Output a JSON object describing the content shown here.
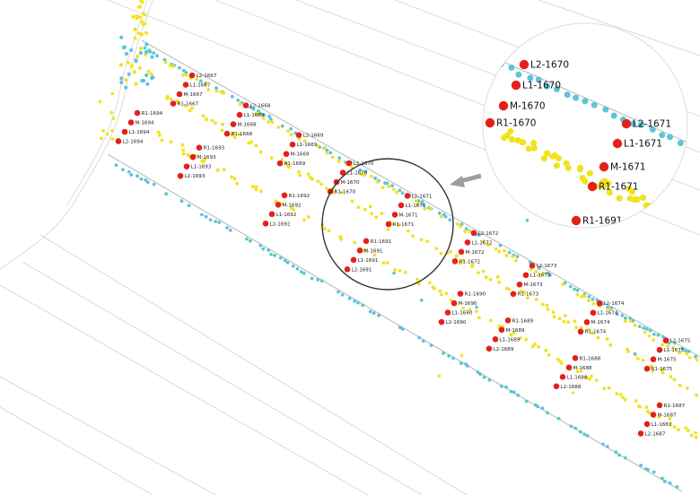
{
  "map": {
    "colors": {
      "background": "#ffffff",
      "boundary_line": "#bdbdbd",
      "road_line": "#d2d2d2",
      "point_yellow": "#f2e21c",
      "point_blue": "#5ec4d8",
      "tree_red": "#e3211c",
      "circle": "#333333",
      "arrow": "#9e9e9e",
      "zoom_bg": "#ffffff"
    },
    "tree_labels": [
      "L2-1667",
      "L1-1667",
      "M-1667",
      "R1-1667",
      "L2-1668",
      "L1-1668",
      "M-1668",
      "R1-1668",
      "L2-1669",
      "L1-1669",
      "M-1669",
      "R1-1669",
      "L2-1670",
      "L1-1670",
      "M-1670",
      "R1-1670",
      "L2-1671",
      "L1-1671",
      "M-1671",
      "R1-1671",
      "L2-1672",
      "L1-1672",
      "M-1672",
      "R1-1672",
      "L2-1673",
      "L1-1673",
      "M-1673",
      "R1-1673",
      "L2-1674",
      "L1-1674",
      "M-1674",
      "R1-1674",
      "L2-1675",
      "L1-1675",
      "M-1675",
      "R1-1675",
      "R1-1694",
      "M-1694",
      "L1-1694",
      "L2-1694",
      "R1-1693",
      "M-1693",
      "L1-1693",
      "L2-1693",
      "R1-1692",
      "M-1692",
      "L1-1692",
      "L2-1692",
      "R1-1691",
      "M-1691",
      "L1-1691",
      "L2-1691",
      "R1-1690",
      "M-1690",
      "L1-1690",
      "L2-1690",
      "R1-1689",
      "M-1689",
      "L1-1689",
      "L2-1689",
      "R1-1688",
      "M-1688",
      "L1-1688",
      "L2-1688",
      "R1-1687",
      "M-1687",
      "L1-1687",
      "L2-1687"
    ],
    "zoom_labels": [
      "L2-1670",
      "L1-1670",
      "M-1670",
      "R1-1670",
      "L2-1671",
      "L1-1671",
      "M-1671",
      "R1-1671",
      "R1-1691"
    ]
  }
}
